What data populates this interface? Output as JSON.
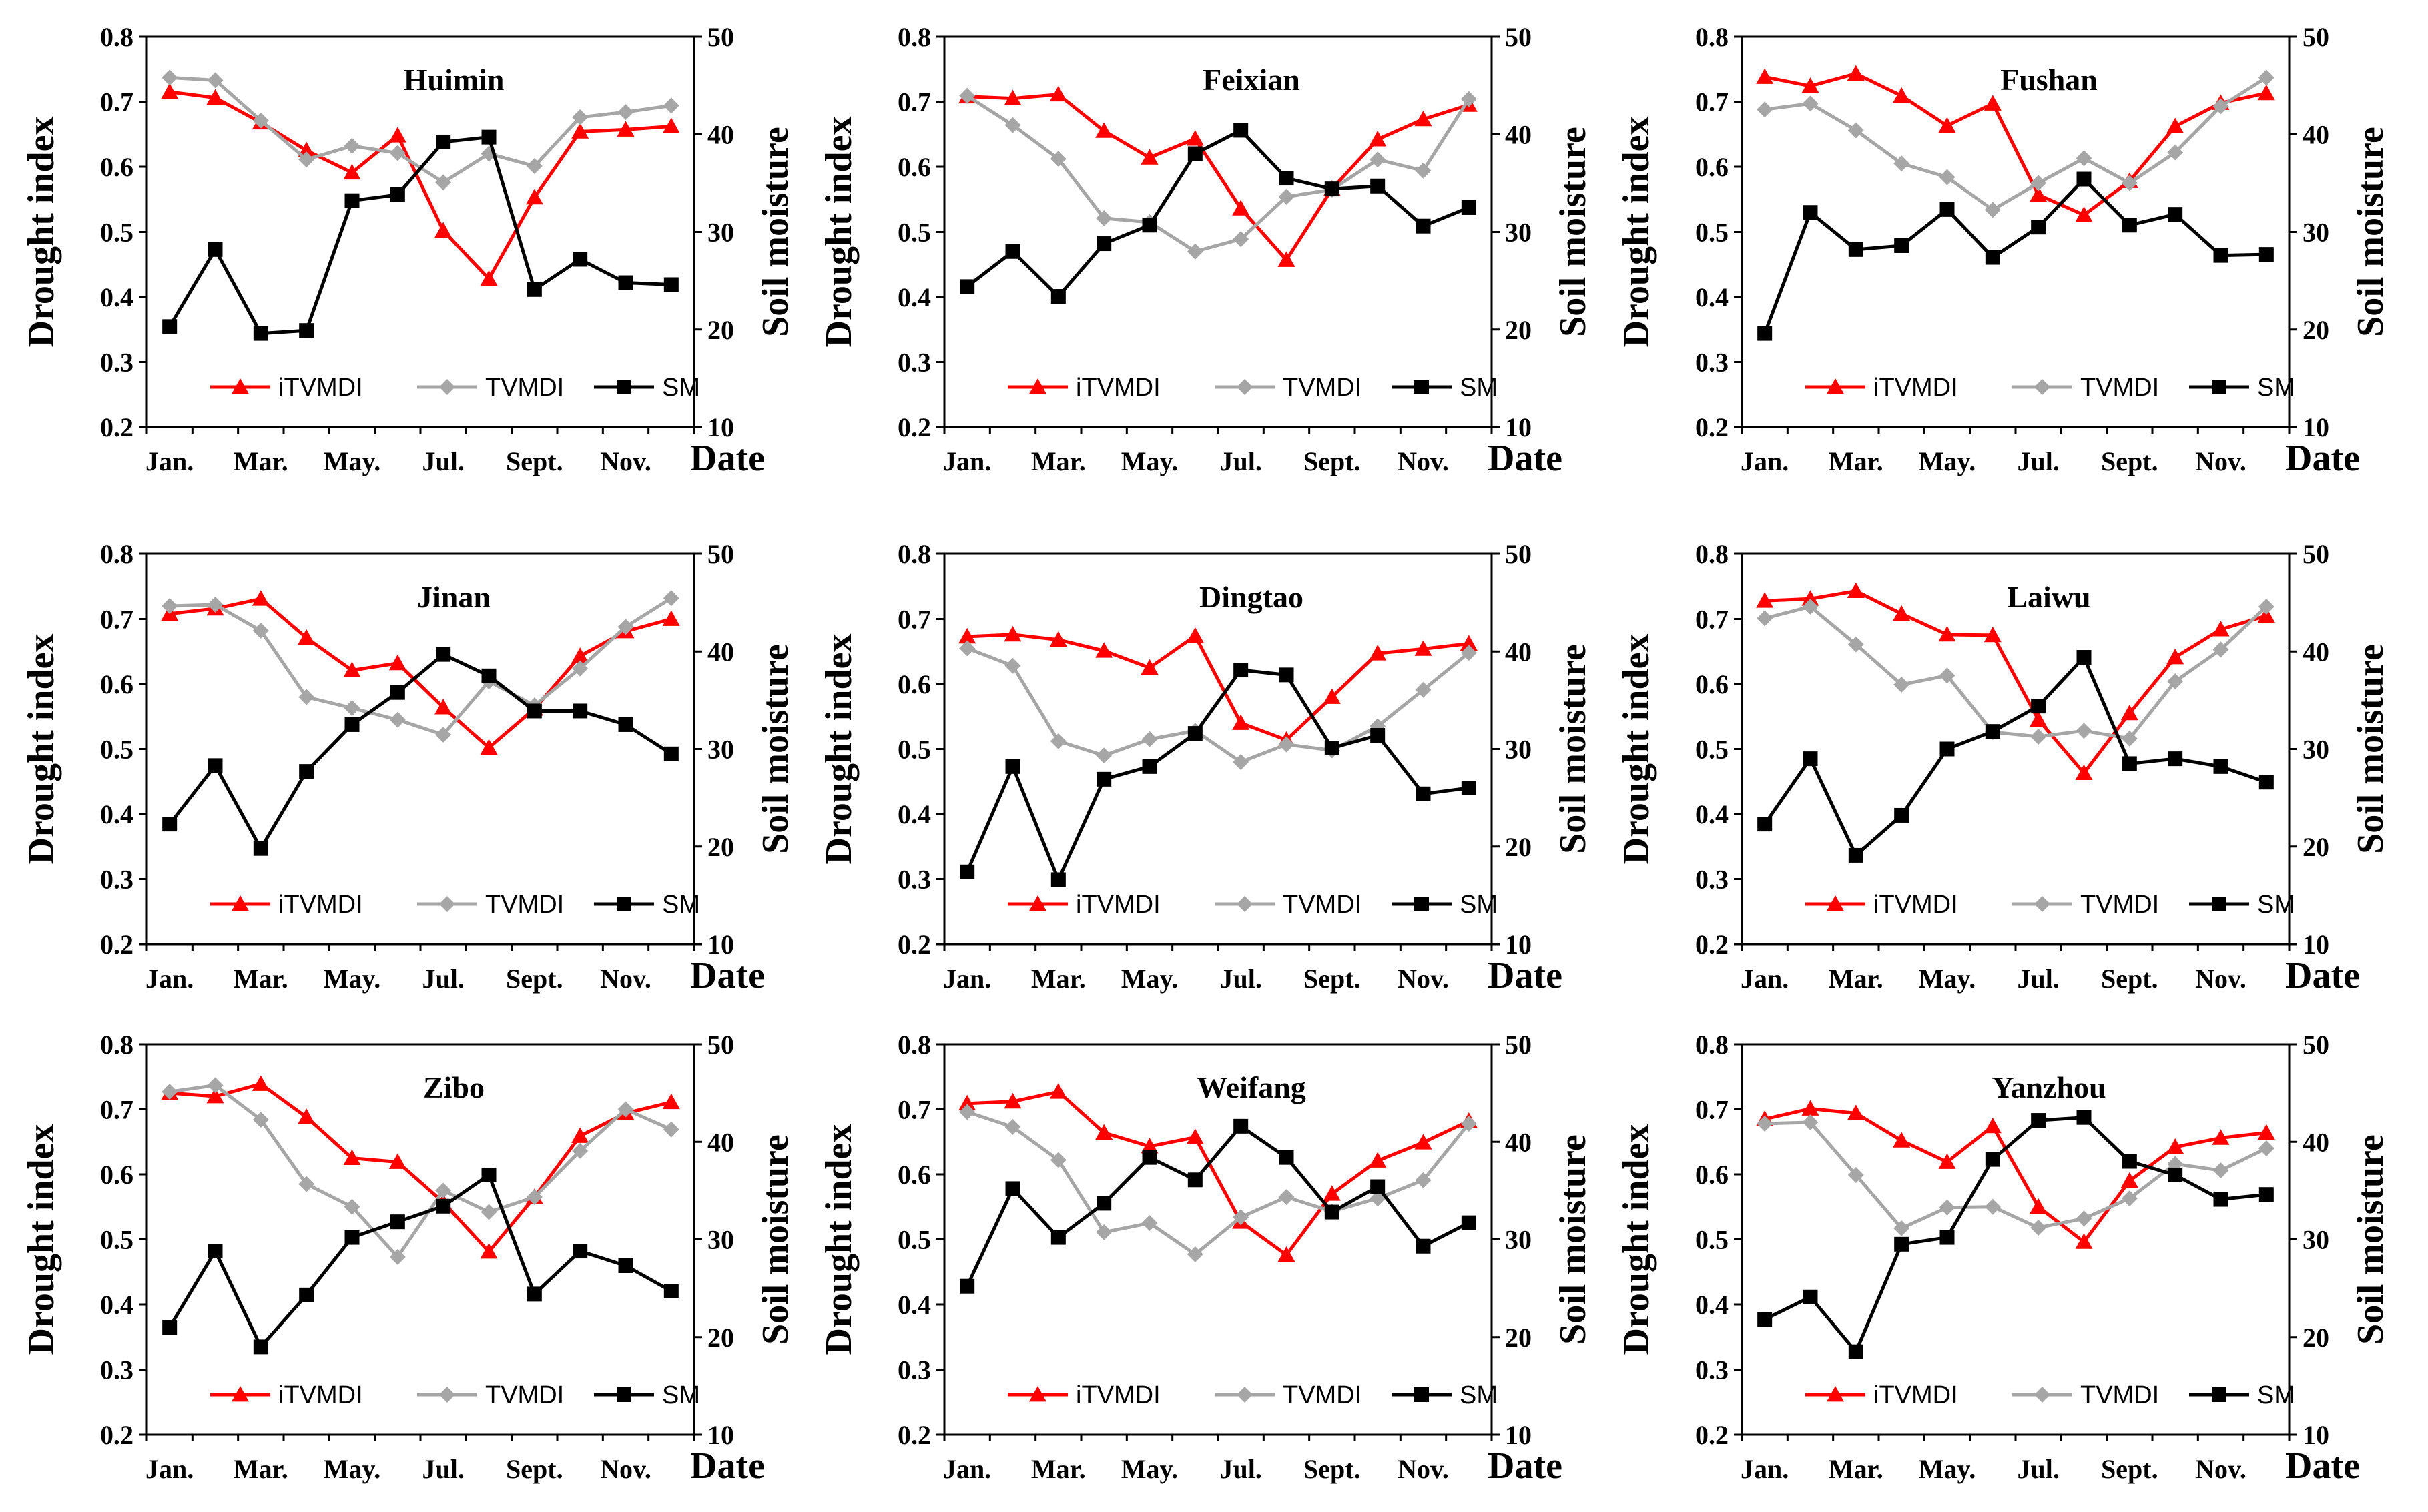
{
  "chart_data": [
    {
      "type": "line",
      "title": "Huimin",
      "ylabel": "Drought index",
      "y2label": "Soil moisture",
      "xlabel": "Date",
      "ylim": [
        0.2,
        0.8
      ],
      "y2lim": [
        10,
        50
      ],
      "yticks": [
        "0.2",
        "0.3",
        "0.4",
        "0.5",
        "0.6",
        "0.7",
        "0.8"
      ],
      "y2ticks": [
        "10",
        "20",
        "30",
        "40",
        "50"
      ],
      "x": [
        1,
        2,
        3,
        4,
        5,
        6,
        7,
        8,
        9,
        10,
        11,
        12
      ],
      "xtick_labels": [
        "Jan.",
        "Mar.",
        "May.",
        "Jul.",
        "Sept.",
        "Nov."
      ],
      "series": [
        {
          "name": "iTVMDI",
          "axis": "left",
          "color": "#ff0000",
          "marker": "triangle",
          "values": [
            0.715,
            0.706,
            0.668,
            0.625,
            0.591,
            0.648,
            0.502,
            0.428,
            0.553,
            0.654,
            0.657,
            0.662
          ]
        },
        {
          "name": "TVMDI",
          "axis": "left",
          "color": "#a6a6a6",
          "marker": "diamond",
          "values": [
            0.737,
            0.733,
            0.671,
            0.611,
            0.632,
            0.621,
            0.576,
            0.62,
            0.601,
            0.676,
            0.684,
            0.694
          ]
        },
        {
          "name": "SM",
          "axis": "right",
          "color": "#000000",
          "marker": "square",
          "values": [
            20.3,
            28.2,
            19.6,
            19.9,
            33.2,
            33.8,
            39.2,
            39.7,
            24.1,
            27.2,
            24.8,
            24.6
          ]
        }
      ]
    },
    {
      "type": "line",
      "title": "Feixian",
      "ylabel": "Drought index",
      "y2label": "Soil moisture",
      "xlabel": "Date",
      "ylim": [
        0.2,
        0.8
      ],
      "y2lim": [
        10,
        50
      ],
      "yticks": [
        "0.2",
        "0.3",
        "0.4",
        "0.5",
        "0.6",
        "0.7",
        "0.8"
      ],
      "y2ticks": [
        "10",
        "20",
        "30",
        "40",
        "50"
      ],
      "x": [
        1,
        2,
        3,
        4,
        5,
        6,
        7,
        8,
        9,
        10,
        11,
        12
      ],
      "xtick_labels": [
        "Jan.",
        "Mar.",
        "May.",
        "Jul.",
        "Sept.",
        "Nov."
      ],
      "series": [
        {
          "name": "iTVMDI",
          "axis": "left",
          "color": "#ff0000",
          "marker": "triangle",
          "values": [
            0.708,
            0.705,
            0.711,
            0.655,
            0.614,
            0.643,
            0.536,
            0.457,
            0.566,
            0.642,
            0.673,
            0.695
          ]
        },
        {
          "name": "TVMDI",
          "axis": "left",
          "color": "#a6a6a6",
          "marker": "diamond",
          "values": [
            0.709,
            0.664,
            0.612,
            0.521,
            0.515,
            0.47,
            0.489,
            0.554,
            0.565,
            0.611,
            0.594,
            0.704
          ]
        },
        {
          "name": "SM",
          "axis": "right",
          "color": "#000000",
          "marker": "square",
          "values": [
            24.4,
            28.0,
            23.4,
            28.8,
            30.7,
            38.0,
            40.4,
            35.5,
            34.4,
            34.7,
            30.6,
            32.5
          ]
        }
      ]
    },
    {
      "type": "line",
      "title": "Fushan",
      "ylabel": "Drought index",
      "y2label": "Soil moisture",
      "xlabel": "Date",
      "ylim": [
        0.2,
        0.8
      ],
      "y2lim": [
        10,
        50
      ],
      "yticks": [
        "0.2",
        "0.3",
        "0.4",
        "0.5",
        "0.6",
        "0.7",
        "0.8"
      ],
      "y2ticks": [
        "10",
        "20",
        "30",
        "40",
        "50"
      ],
      "x": [
        1,
        2,
        3,
        4,
        5,
        6,
        7,
        8,
        9,
        10,
        11,
        12
      ],
      "xtick_labels": [
        "Jan.",
        "Mar.",
        "May.",
        "Jul.",
        "Sept.",
        "Nov."
      ],
      "series": [
        {
          "name": "iTVMDI",
          "axis": "left",
          "color": "#ff0000",
          "marker": "triangle",
          "values": [
            0.738,
            0.724,
            0.743,
            0.709,
            0.663,
            0.697,
            0.557,
            0.526,
            0.578,
            0.662,
            0.698,
            0.713
          ]
        },
        {
          "name": "TVMDI",
          "axis": "left",
          "color": "#a6a6a6",
          "marker": "diamond",
          "values": [
            0.688,
            0.697,
            0.656,
            0.605,
            0.584,
            0.534,
            0.575,
            0.613,
            0.575,
            0.622,
            0.693,
            0.737
          ]
        },
        {
          "name": "SM",
          "axis": "right",
          "color": "#000000",
          "marker": "square",
          "values": [
            19.6,
            32.0,
            28.2,
            28.6,
            32.3,
            27.4,
            30.5,
            35.4,
            30.7,
            31.8,
            27.6,
            27.7
          ]
        }
      ]
    },
    {
      "type": "line",
      "title": "Jinan",
      "ylabel": "Drought index",
      "y2label": "Soil moisture",
      "xlabel": "Date",
      "ylim": [
        0.2,
        0.8
      ],
      "y2lim": [
        10,
        50
      ],
      "yticks": [
        "0.2",
        "0.3",
        "0.4",
        "0.5",
        "0.6",
        "0.7",
        "0.8"
      ],
      "y2ticks": [
        "10",
        "20",
        "30",
        "40",
        "50"
      ],
      "x": [
        1,
        2,
        3,
        4,
        5,
        6,
        7,
        8,
        9,
        10,
        11,
        12
      ],
      "xtick_labels": [
        "Jan.",
        "Mar.",
        "May.",
        "Jul.",
        "Sept.",
        "Nov."
      ],
      "series": [
        {
          "name": "iTVMDI",
          "axis": "left",
          "color": "#ff0000",
          "marker": "triangle",
          "values": [
            0.708,
            0.716,
            0.731,
            0.671,
            0.621,
            0.632,
            0.564,
            0.502,
            0.562,
            0.643,
            0.681,
            0.7
          ]
        },
        {
          "name": "TVMDI",
          "axis": "left",
          "color": "#a6a6a6",
          "marker": "diamond",
          "values": [
            0.72,
            0.722,
            0.682,
            0.58,
            0.563,
            0.545,
            0.522,
            0.604,
            0.567,
            0.624,
            0.688,
            0.732
          ]
        },
        {
          "name": "SM",
          "axis": "right",
          "color": "#000000",
          "marker": "square",
          "values": [
            22.3,
            28.3,
            19.8,
            27.7,
            32.5,
            35.8,
            39.7,
            37.5,
            33.9,
            33.9,
            32.5,
            29.5
          ]
        }
      ]
    },
    {
      "type": "line",
      "title": "Dingtao",
      "ylabel": "Drought index",
      "y2label": "Soil moisture",
      "xlabel": "Date",
      "ylim": [
        0.2,
        0.8
      ],
      "y2lim": [
        10,
        50
      ],
      "yticks": [
        "0.2",
        "0.3",
        "0.4",
        "0.5",
        "0.6",
        "0.7",
        "0.8"
      ],
      "y2ticks": [
        "10",
        "20",
        "30",
        "40",
        "50"
      ],
      "x": [
        1,
        2,
        3,
        4,
        5,
        6,
        7,
        8,
        9,
        10,
        11,
        12
      ],
      "xtick_labels": [
        "Jan.",
        "Mar.",
        "May.",
        "Jul.",
        "Sept.",
        "Nov."
      ],
      "series": [
        {
          "name": "iTVMDI",
          "axis": "left",
          "color": "#ff0000",
          "marker": "triangle",
          "values": [
            0.673,
            0.676,
            0.668,
            0.651,
            0.625,
            0.674,
            0.54,
            0.514,
            0.58,
            0.647,
            0.654,
            0.662
          ]
        },
        {
          "name": "TVMDI",
          "axis": "left",
          "color": "#a6a6a6",
          "marker": "diamond",
          "values": [
            0.655,
            0.628,
            0.512,
            0.49,
            0.515,
            0.528,
            0.48,
            0.507,
            0.498,
            0.535,
            0.591,
            0.648
          ]
        },
        {
          "name": "SM",
          "axis": "right",
          "color": "#000000",
          "marker": "square",
          "values": [
            17.4,
            28.2,
            16.6,
            26.9,
            28.2,
            31.6,
            38.1,
            37.6,
            30.1,
            31.4,
            25.4,
            26.0
          ]
        }
      ]
    },
    {
      "type": "line",
      "title": "Laiwu",
      "ylabel": "Drought index",
      "y2label": "Soil moisture",
      "xlabel": "Date",
      "ylim": [
        0.2,
        0.8
      ],
      "y2lim": [
        10,
        50
      ],
      "yticks": [
        "0.2",
        "0.3",
        "0.4",
        "0.5",
        "0.6",
        "0.7",
        "0.8"
      ],
      "y2ticks": [
        "10",
        "20",
        "30",
        "40",
        "50"
      ],
      "x": [
        1,
        2,
        3,
        4,
        5,
        6,
        7,
        8,
        9,
        10,
        11,
        12
      ],
      "xtick_labels": [
        "Jan.",
        "Mar.",
        "May.",
        "Jul.",
        "Sept.",
        "Nov."
      ],
      "series": [
        {
          "name": "iTVMDI",
          "axis": "left",
          "color": "#ff0000",
          "marker": "triangle",
          "values": [
            0.728,
            0.731,
            0.743,
            0.708,
            0.676,
            0.675,
            0.545,
            0.463,
            0.555,
            0.641,
            0.684,
            0.705
          ]
        },
        {
          "name": "TVMDI",
          "axis": "left",
          "color": "#a6a6a6",
          "marker": "diamond",
          "values": [
            0.701,
            0.719,
            0.661,
            0.599,
            0.613,
            0.526,
            0.519,
            0.528,
            0.516,
            0.604,
            0.653,
            0.719
          ]
        },
        {
          "name": "SM",
          "axis": "right",
          "color": "#000000",
          "marker": "square",
          "values": [
            22.3,
            29.0,
            19.1,
            23.2,
            30.0,
            31.8,
            34.4,
            39.4,
            28.5,
            29.0,
            28.2,
            26.6
          ]
        }
      ]
    },
    {
      "type": "line",
      "title": "Zibo",
      "ylabel": "Drought index",
      "y2label": "Soil moisture",
      "xlabel": "Date",
      "ylim": [
        0.2,
        0.8
      ],
      "y2lim": [
        10,
        50
      ],
      "yticks": [
        "0.2",
        "0.3",
        "0.4",
        "0.5",
        "0.6",
        "0.7",
        "0.8"
      ],
      "y2ticks": [
        "10",
        "20",
        "30",
        "40",
        "50"
      ],
      "x": [
        1,
        2,
        3,
        4,
        5,
        6,
        7,
        8,
        9,
        10,
        11,
        12
      ],
      "xtick_labels": [
        "Jan.",
        "Mar.",
        "May.",
        "Jul.",
        "Sept.",
        "Nov."
      ],
      "series": [
        {
          "name": "iTVMDI",
          "axis": "left",
          "color": "#ff0000",
          "marker": "triangle",
          "values": [
            0.725,
            0.72,
            0.739,
            0.688,
            0.625,
            0.619,
            0.557,
            0.481,
            0.565,
            0.659,
            0.694,
            0.711
          ]
        },
        {
          "name": "TVMDI",
          "axis": "left",
          "color": "#a6a6a6",
          "marker": "diamond",
          "values": [
            0.727,
            0.737,
            0.684,
            0.585,
            0.55,
            0.473,
            0.575,
            0.542,
            0.565,
            0.636,
            0.7,
            0.669
          ]
        },
        {
          "name": "SM",
          "axis": "right",
          "color": "#000000",
          "marker": "square",
          "values": [
            21.0,
            28.8,
            19.0,
            24.3,
            30.2,
            31.8,
            33.4,
            36.6,
            24.4,
            28.8,
            27.3,
            24.7
          ]
        }
      ]
    },
    {
      "type": "line",
      "title": "Weifang",
      "ylabel": "Drought index",
      "y2label": "Soil moisture",
      "xlabel": "Date",
      "ylim": [
        0.2,
        0.8
      ],
      "y2lim": [
        10,
        50
      ],
      "yticks": [
        "0.2",
        "0.3",
        "0.4",
        "0.5",
        "0.6",
        "0.7",
        "0.8"
      ],
      "y2ticks": [
        "10",
        "20",
        "30",
        "40",
        "50"
      ],
      "x": [
        1,
        2,
        3,
        4,
        5,
        6,
        7,
        8,
        9,
        10,
        11,
        12
      ],
      "xtick_labels": [
        "Jan.",
        "Mar.",
        "May.",
        "Jul.",
        "Sept.",
        "Nov."
      ],
      "series": [
        {
          "name": "iTVMDI",
          "axis": "left",
          "color": "#ff0000",
          "marker": "triangle",
          "values": [
            0.709,
            0.712,
            0.727,
            0.664,
            0.643,
            0.657,
            0.527,
            0.476,
            0.57,
            0.621,
            0.649,
            0.682
          ]
        },
        {
          "name": "TVMDI",
          "axis": "left",
          "color": "#a6a6a6",
          "marker": "diamond",
          "values": [
            0.696,
            0.673,
            0.622,
            0.511,
            0.525,
            0.477,
            0.534,
            0.565,
            0.543,
            0.563,
            0.591,
            0.678
          ]
        },
        {
          "name": "SM",
          "axis": "right",
          "color": "#000000",
          "marker": "square",
          "values": [
            25.2,
            35.2,
            30.2,
            33.7,
            38.4,
            36.1,
            41.6,
            38.4,
            32.8,
            35.4,
            29.3,
            31.7
          ]
        }
      ]
    },
    {
      "type": "line",
      "title": "Yanzhou",
      "ylabel": "Drought index",
      "y2label": "Soil moisture",
      "xlabel": "Date",
      "ylim": [
        0.2,
        0.8
      ],
      "y2lim": [
        10,
        50
      ],
      "yticks": [
        "0.2",
        "0.3",
        "0.4",
        "0.5",
        "0.6",
        "0.7",
        "0.8"
      ],
      "y2ticks": [
        "10",
        "20",
        "30",
        "40",
        "50"
      ],
      "x": [
        1,
        2,
        3,
        4,
        5,
        6,
        7,
        8,
        9,
        10,
        11,
        12
      ],
      "xtick_labels": [
        "Jan.",
        "Mar.",
        "May.",
        "Jul.",
        "Sept.",
        "Nov."
      ],
      "series": [
        {
          "name": "iTVMDI",
          "axis": "left",
          "color": "#ff0000",
          "marker": "triangle",
          "values": [
            0.685,
            0.701,
            0.694,
            0.652,
            0.619,
            0.674,
            0.55,
            0.496,
            0.59,
            0.642,
            0.656,
            0.664
          ]
        },
        {
          "name": "TVMDI",
          "axis": "left",
          "color": "#a6a6a6",
          "marker": "diamond",
          "values": [
            0.678,
            0.68,
            0.599,
            0.517,
            0.549,
            0.55,
            0.518,
            0.532,
            0.563,
            0.616,
            0.606,
            0.64
          ]
        },
        {
          "name": "SM",
          "axis": "right",
          "color": "#000000",
          "marker": "square",
          "values": [
            21.8,
            24.1,
            18.5,
            29.5,
            30.2,
            38.2,
            42.2,
            42.5,
            38.0,
            36.6,
            34.1,
            34.6
          ]
        }
      ]
    }
  ]
}
